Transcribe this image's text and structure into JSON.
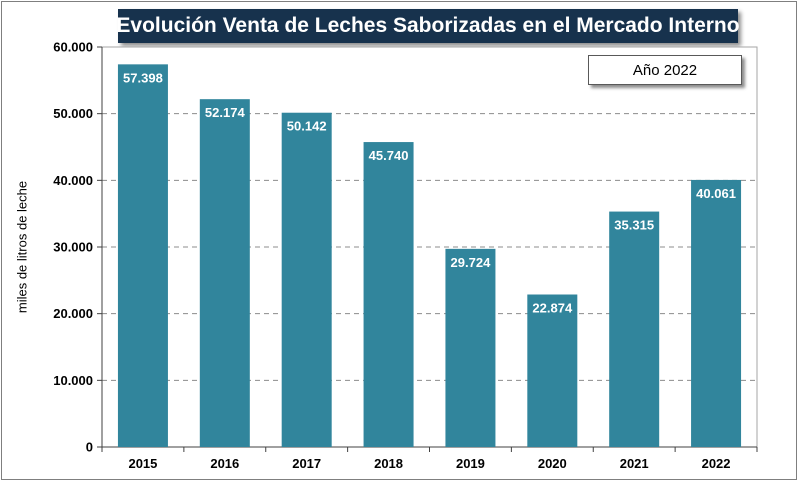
{
  "chart_data": {
    "type": "bar",
    "title": "Evolución Venta de Leches Saborizadas en el Mercado Interno",
    "legend": "Año 2022",
    "ylabel": "miles de litros de leche",
    "xlabel": "",
    "categories": [
      "2015",
      "2016",
      "2017",
      "2018",
      "2019",
      "2020",
      "2021",
      "2022"
    ],
    "values": [
      57398,
      52174,
      50142,
      45740,
      29724,
      22874,
      35315,
      40061
    ],
    "data_labels": [
      "57.398",
      "52.174",
      "50.142",
      "45.740",
      "29.724",
      "22.874",
      "35.315",
      "40.061"
    ],
    "ylim": [
      0,
      60000
    ],
    "yticks": [
      0,
      10000,
      20000,
      30000,
      40000,
      50000,
      60000
    ],
    "ytick_labels": [
      "0",
      "10.000",
      "20.000",
      "30.000",
      "40.000",
      "50.000",
      "60.000"
    ],
    "bar_color": "#31859c",
    "grid": "dashed horizontal"
  }
}
